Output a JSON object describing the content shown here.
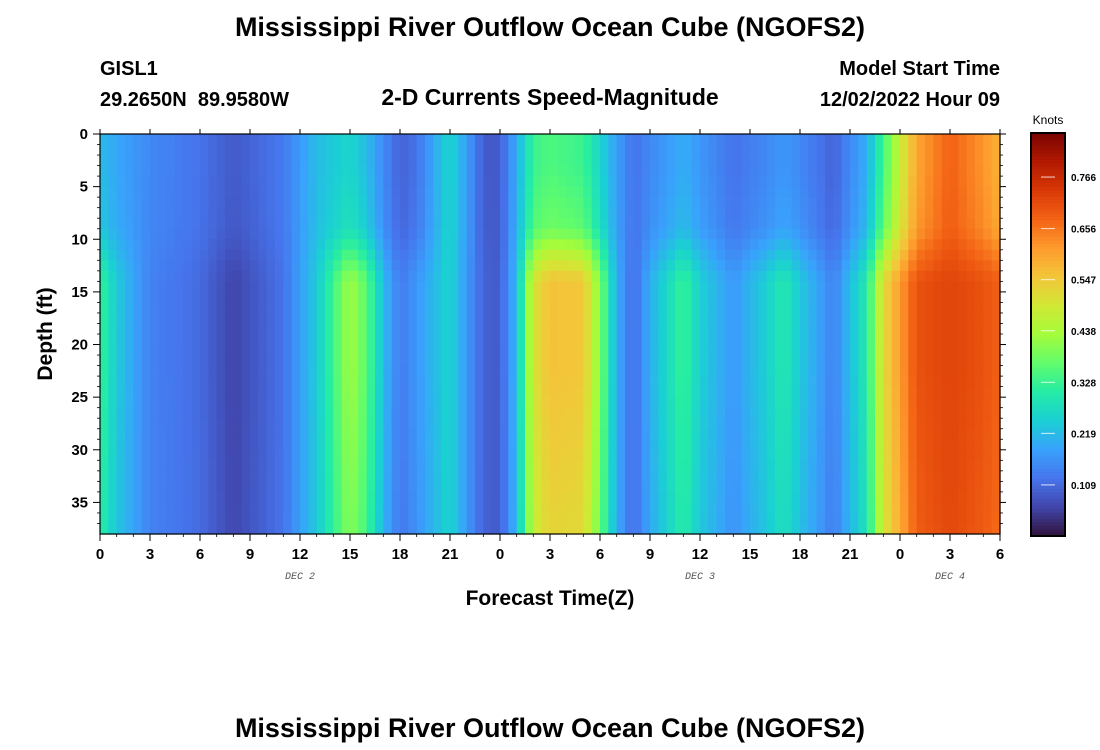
{
  "page": {
    "title": "Mississippi River Outflow Ocean Cube (NGOFS2)",
    "station_id": "GISL1",
    "station_coords": "29.2650N  89.9580W",
    "model_start_label": "Model Start Time",
    "model_start_value": "12/02/2022 Hour 09",
    "bottom_title": "Mississippi River Outflow Ocean Cube (NGOFS2)"
  },
  "chart_data": {
    "type": "heatmap",
    "title": "2-D Currents Speed-Magnitude",
    "xlabel": "Forecast Time(Z)",
    "ylabel": "Depth (ft)",
    "x_range_hours": [
      0,
      54
    ],
    "x_tick_labels": [
      "0",
      "3",
      "6",
      "9",
      "12",
      "15",
      "18",
      "21",
      "0",
      "3",
      "6",
      "9",
      "12",
      "15",
      "18",
      "21",
      "0",
      "3",
      "6"
    ],
    "date_labels": [
      {
        "label": "DEC 2",
        "hour": 12
      },
      {
        "label": "DEC 3",
        "hour": 36
      },
      {
        "label": "DEC 4",
        "hour": 51
      }
    ],
    "y_range": [
      0,
      38
    ],
    "y_ticks": [
      0,
      5,
      10,
      15,
      20,
      25,
      30,
      35
    ],
    "y_inverted": true,
    "colorbar": {
      "unit": "Knots",
      "ticks": [
        "0.109",
        "0.219",
        "0.328",
        "0.438",
        "0.547",
        "0.656",
        "0.766"
      ],
      "range": [
        0,
        0.86
      ],
      "colormap": [
        "#30123b",
        "#4145ab",
        "#4675ed",
        "#39a2fc",
        "#1bcfd4",
        "#24eca6",
        "#61fc6c",
        "#a4fc3b",
        "#d1e834",
        "#f3c63a",
        "#fe9b2d",
        "#f36315",
        "#d93806",
        "#b11901",
        "#7a0402"
      ]
    },
    "grid": false,
    "legend": "right colorbar",
    "hour_profiles": [
      {
        "h": 0,
        "top": 0.22,
        "bottom": 0.33
      },
      {
        "h": 1,
        "top": 0.19,
        "bottom": 0.24
      },
      {
        "h": 3,
        "top": 0.15,
        "bottom": 0.14
      },
      {
        "h": 6,
        "top": 0.12,
        "bottom": 0.11
      },
      {
        "h": 8,
        "top": 0.09,
        "bottom": 0.06
      },
      {
        "h": 9,
        "top": 0.1,
        "bottom": 0.08
      },
      {
        "h": 11,
        "top": 0.13,
        "bottom": 0.12
      },
      {
        "h": 13,
        "top": 0.22,
        "bottom": 0.24
      },
      {
        "h": 15,
        "top": 0.26,
        "bottom": 0.43
      },
      {
        "h": 16,
        "top": 0.22,
        "bottom": 0.36
      },
      {
        "h": 17,
        "top": 0.15,
        "bottom": 0.22
      },
      {
        "h": 18,
        "top": 0.1,
        "bottom": 0.13
      },
      {
        "h": 19,
        "top": 0.12,
        "bottom": 0.17
      },
      {
        "h": 21,
        "top": 0.26,
        "bottom": 0.26
      },
      {
        "h": 22,
        "top": 0.18,
        "bottom": 0.17
      },
      {
        "h": 23,
        "top": 0.09,
        "bottom": 0.1
      },
      {
        "h": 24,
        "top": 0.09,
        "bottom": 0.09
      },
      {
        "h": 25,
        "top": 0.2,
        "bottom": 0.22
      },
      {
        "h": 26,
        "top": 0.33,
        "bottom": 0.5
      },
      {
        "h": 27,
        "top": 0.35,
        "bottom": 0.56
      },
      {
        "h": 29,
        "top": 0.33,
        "bottom": 0.55
      },
      {
        "h": 30,
        "top": 0.26,
        "bottom": 0.4
      },
      {
        "h": 31,
        "top": 0.18,
        "bottom": 0.2
      },
      {
        "h": 32,
        "top": 0.12,
        "bottom": 0.11
      },
      {
        "h": 33,
        "top": 0.15,
        "bottom": 0.2
      },
      {
        "h": 35,
        "top": 0.2,
        "bottom": 0.33
      },
      {
        "h": 36,
        "top": 0.17,
        "bottom": 0.25
      },
      {
        "h": 38,
        "top": 0.12,
        "bottom": 0.17
      },
      {
        "h": 40,
        "top": 0.15,
        "bottom": 0.25
      },
      {
        "h": 41,
        "top": 0.17,
        "bottom": 0.3
      },
      {
        "h": 42,
        "top": 0.15,
        "bottom": 0.24
      },
      {
        "h": 44,
        "top": 0.1,
        "bottom": 0.14
      },
      {
        "h": 46,
        "top": 0.2,
        "bottom": 0.3
      },
      {
        "h": 47,
        "top": 0.34,
        "bottom": 0.52
      },
      {
        "h": 49,
        "top": 0.6,
        "bottom": 0.7
      },
      {
        "h": 51,
        "top": 0.68,
        "bottom": 0.72
      },
      {
        "h": 53,
        "top": 0.62,
        "bottom": 0.7
      },
      {
        "h": 54,
        "top": 0.58,
        "bottom": 0.68
      }
    ]
  }
}
